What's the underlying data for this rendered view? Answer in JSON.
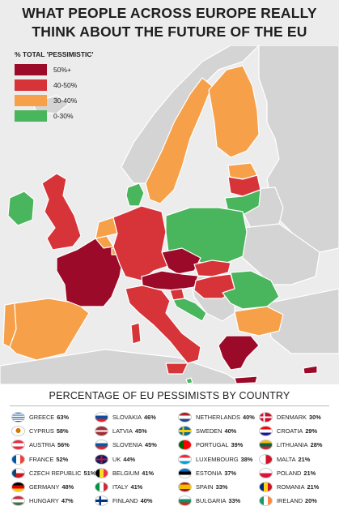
{
  "title": {
    "line1": "WHAT PEOPLE ACROSS EUROPE REALLY",
    "line2": "THINK ABOUT THE FUTURE OF THE EU"
  },
  "legend": {
    "title": "% TOTAL 'PESSIMISTIC'",
    "items": [
      {
        "label": "50%+",
        "color": "#9b0a29"
      },
      {
        "label": "40-50%",
        "color": "#d7343a"
      },
      {
        "label": "30-40%",
        "color": "#f6a04a"
      },
      {
        "label": "0-30%",
        "color": "#49b55c"
      }
    ]
  },
  "map_colors": {
    "background": "#ececec",
    "non_eu": "#d4d4d4",
    "border": "#ffffff"
  },
  "stats": {
    "title": "PERCENTAGE OF EU PESSIMISTS BY COUNTRY",
    "columns": [
      [
        {
          "name": "Greece",
          "pct": "63%",
          "flag": "greece-flag-icon"
        },
        {
          "name": "Cyprus",
          "pct": "58%",
          "flag": "cyprus-flag-icon"
        },
        {
          "name": "Austria",
          "pct": "56%",
          "flag": "austria-flag-icon"
        },
        {
          "name": "France",
          "pct": "52%",
          "flag": "france-flag-icon"
        },
        {
          "name": "Czech Republic",
          "pct": "51%",
          "flag": "czech-flag-icon"
        },
        {
          "name": "Germany",
          "pct": "48%",
          "flag": "germany-flag-icon"
        },
        {
          "name": "Hungary",
          "pct": "47%",
          "flag": "hungary-flag-icon"
        }
      ],
      [
        {
          "name": "Slovakia",
          "pct": "46%",
          "flag": "slovakia-flag-icon"
        },
        {
          "name": "Latvia",
          "pct": "45%",
          "flag": "latvia-flag-icon"
        },
        {
          "name": "Slovenia",
          "pct": "45%",
          "flag": "slovenia-flag-icon"
        },
        {
          "name": "UK",
          "pct": "44%",
          "flag": "uk-flag-icon"
        },
        {
          "name": "Belgium",
          "pct": "41%",
          "flag": "belgium-flag-icon"
        },
        {
          "name": "Italy",
          "pct": "41%",
          "flag": "italy-flag-icon"
        },
        {
          "name": "Finland",
          "pct": "40%",
          "flag": "finland-flag-icon"
        }
      ],
      [
        {
          "name": "Netherlands",
          "pct": "40%",
          "flag": "netherlands-flag-icon"
        },
        {
          "name": "Sweden",
          "pct": "40%",
          "flag": "sweden-flag-icon"
        },
        {
          "name": "Portugal",
          "pct": "39%",
          "flag": "portugal-flag-icon"
        },
        {
          "name": "Luxembourg",
          "pct": "38%",
          "flag": "luxembourg-flag-icon"
        },
        {
          "name": "Estonia",
          "pct": "37%",
          "flag": "estonia-flag-icon"
        },
        {
          "name": "Spain",
          "pct": "33%",
          "flag": "spain-flag-icon"
        },
        {
          "name": "Bulgaria",
          "pct": "33%",
          "flag": "bulgaria-flag-icon"
        }
      ],
      [
        {
          "name": "Denmark",
          "pct": "30%",
          "flag": "denmark-flag-icon"
        },
        {
          "name": "Croatia",
          "pct": "29%",
          "flag": "croatia-flag-icon"
        },
        {
          "name": "Lithuania",
          "pct": "28%",
          "flag": "lithuania-flag-icon"
        },
        {
          "name": "Malta",
          "pct": "21%",
          "flag": "malta-flag-icon"
        },
        {
          "name": "Poland",
          "pct": "21%",
          "flag": "poland-flag-icon"
        },
        {
          "name": "Romania",
          "pct": "21%",
          "flag": "romania-flag-icon"
        },
        {
          "name": "Ireland",
          "pct": "20%",
          "flag": "ireland-flag-icon"
        }
      ]
    ]
  }
}
